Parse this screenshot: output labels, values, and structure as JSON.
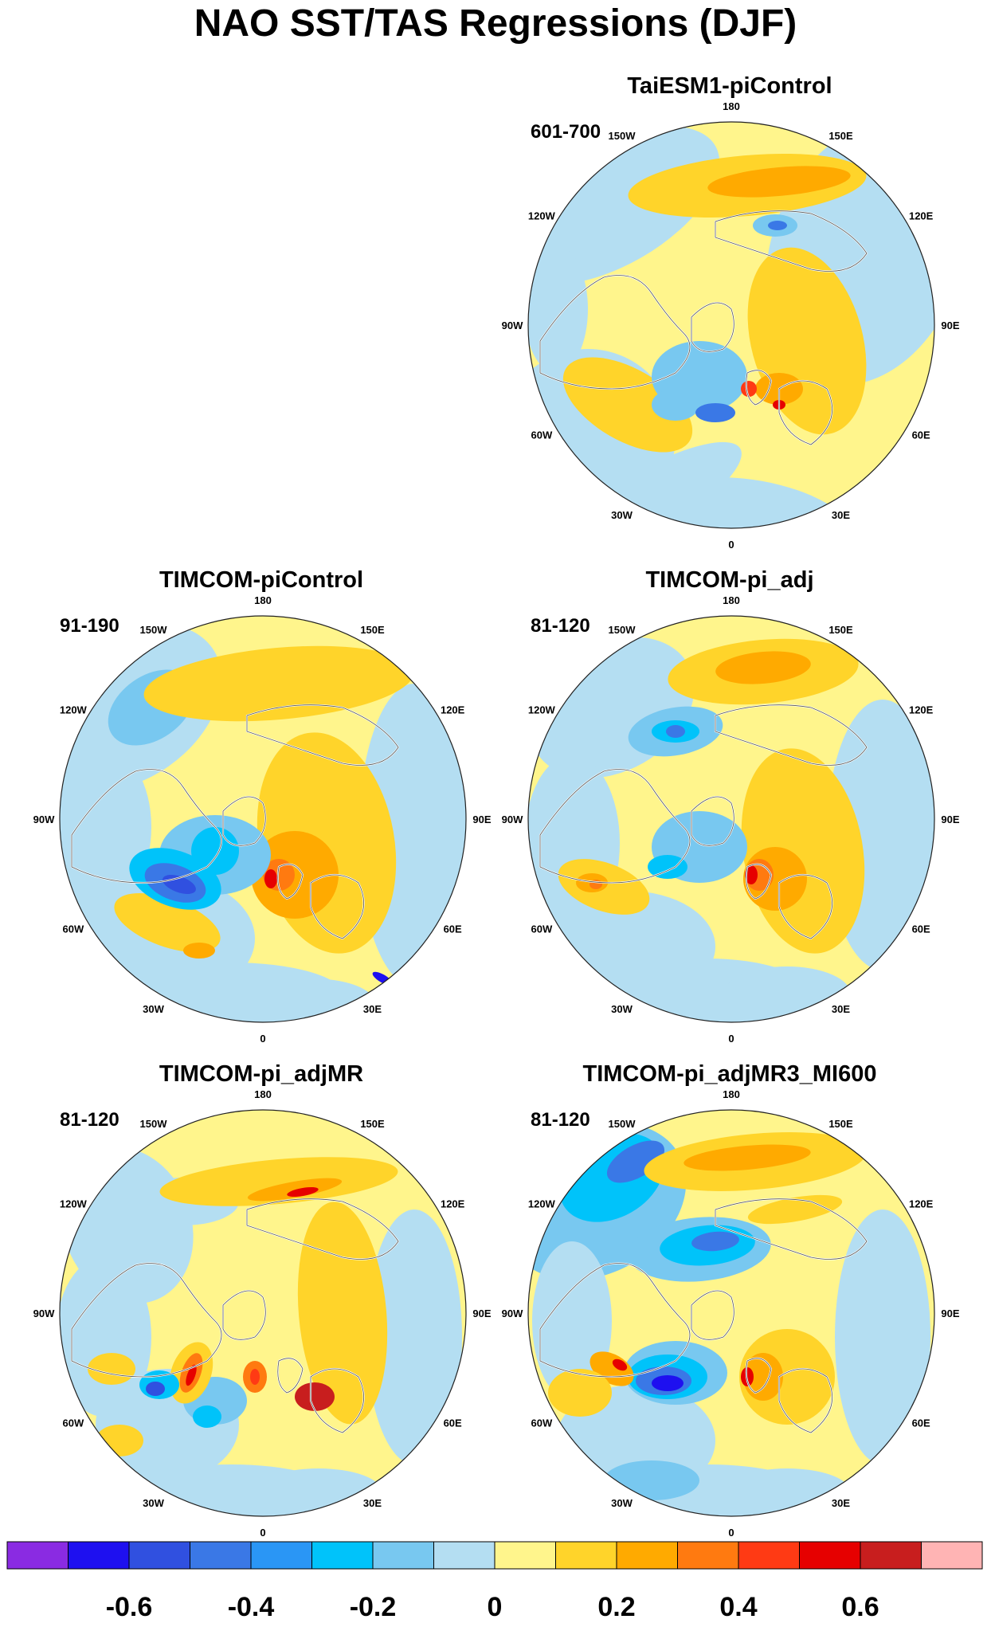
{
  "title": "NAO SST/TAS Regressions (DJF)",
  "lon_labels": [
    "180",
    "150E",
    "120E",
    "90E",
    "60E",
    "30E",
    "0",
    "30W",
    "60W",
    "90W",
    "120W",
    "150W"
  ],
  "panels": [
    {
      "id": "taiesm1",
      "title": "TaiESM1-piControl",
      "years": "601-700",
      "scheme": "a"
    },
    {
      "id": "timcom-picontrol",
      "title": "TIMCOM-piControl",
      "years": "91-190",
      "scheme": "b"
    },
    {
      "id": "timcom-pi-adj",
      "title": "TIMCOM-pi_adj",
      "years": "81-120",
      "scheme": "c"
    },
    {
      "id": "timcom-pi-adjmr",
      "title": "TIMCOM-pi_adjMR",
      "years": "81-120",
      "scheme": "d"
    },
    {
      "id": "timcom-pi-adjmr3-mi600",
      "title": "TIMCOM-pi_adjMR3_MI600",
      "years": "81-120",
      "scheme": "e"
    }
  ],
  "colorbar": {
    "colors": [
      "#8a2be2",
      "#1e10f0",
      "#3050e0",
      "#3a78e6",
      "#2a96f5",
      "#00c3fa",
      "#78c8f0",
      "#b4def2",
      "#fff58c",
      "#ffd42a",
      "#ffaa00",
      "#ff7a10",
      "#ff3a14",
      "#e60000",
      "#c81e1e",
      "#ffb4b4"
    ],
    "labels": [
      "-0.6",
      "-0.4",
      "-0.2",
      "0",
      "0.2",
      "0.4",
      "0.6"
    ]
  },
  "chart_data": {
    "type": "heatmap",
    "projection": "north polar stereographic",
    "variable": "NAO SST/TAS regression (DJF)",
    "color_levels": [
      -0.7,
      -0.6,
      -0.5,
      -0.4,
      -0.3,
      -0.2,
      -0.1,
      0,
      0.1,
      0.2,
      0.3,
      0.4,
      0.5,
      0.6,
      0.7
    ],
    "tick_labels": [
      -0.6,
      -0.4,
      -0.2,
      0,
      0.2,
      0.4,
      0.6
    ],
    "panels": [
      "TaiESM1-piControl",
      "TIMCOM-piControl",
      "TIMCOM-pi_adj",
      "TIMCOM-pi_adjMR",
      "TIMCOM-pi_adjMR3_MI600"
    ]
  }
}
